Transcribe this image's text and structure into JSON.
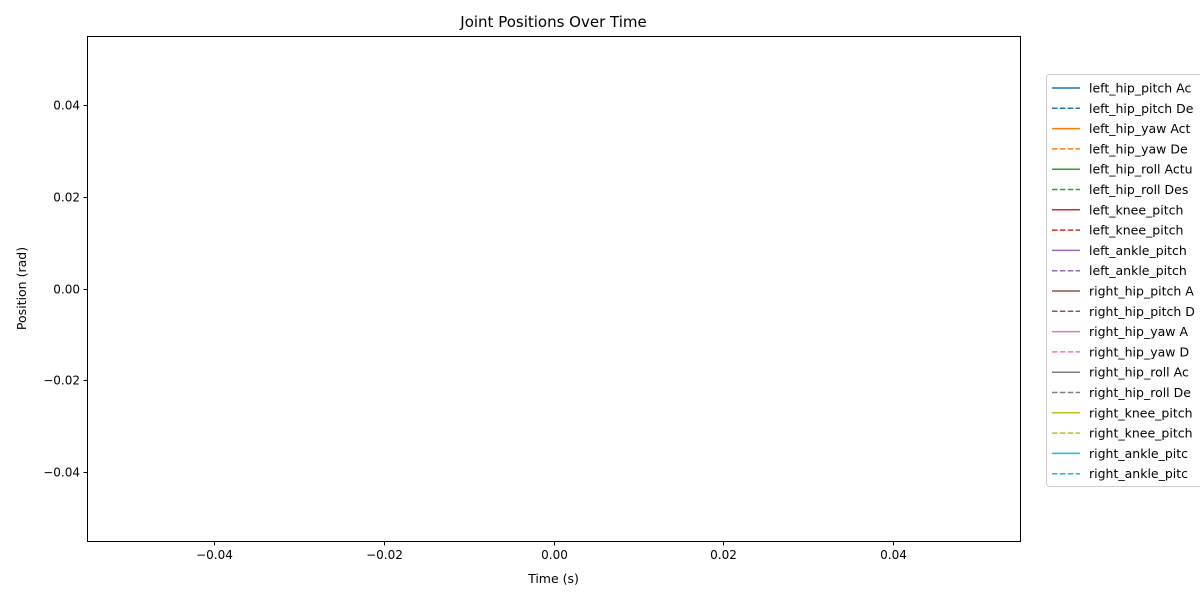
{
  "chart_data": {
    "type": "line",
    "title": "Joint Positions Over Time",
    "xlabel": "Time (s)",
    "ylabel": "Position (rad)",
    "xlim": [
      -0.055,
      0.055
    ],
    "ylim": [
      -0.055,
      0.055
    ],
    "x_ticks": [
      "−0.04",
      "−0.02",
      "0.00",
      "0.02",
      "0.04"
    ],
    "x_tick_values": [
      -0.04,
      -0.02,
      0.0,
      0.02,
      0.04
    ],
    "y_ticks": [
      "0.04",
      "0.02",
      "0.00",
      "−0.02",
      "−0.04"
    ],
    "y_tick_values": [
      0.04,
      0.02,
      0.0,
      -0.02,
      -0.04
    ],
    "grid": false,
    "legend_position": "right, outside plot area, clipped at page edge",
    "series": [
      {
        "name": "left_hip_pitch Ac",
        "color": "#1f77b4",
        "style": "solid",
        "values": []
      },
      {
        "name": "left_hip_pitch De",
        "color": "#1f77b4",
        "style": "dashed",
        "values": []
      },
      {
        "name": "left_hip_yaw Act",
        "color": "#ff7f0e",
        "style": "solid",
        "values": []
      },
      {
        "name": "left_hip_yaw De",
        "color": "#ff7f0e",
        "style": "dashed",
        "values": []
      },
      {
        "name": "left_hip_roll Actu",
        "color": "#2ca02c",
        "style": "solid",
        "values": []
      },
      {
        "name": "left_hip_roll Des",
        "color": "#2ca02c",
        "style": "dashed",
        "values": []
      },
      {
        "name": "left_knee_pitch",
        "color": "#d62728",
        "style": "solid",
        "values": []
      },
      {
        "name": "left_knee_pitch",
        "color": "#d62728",
        "style": "dashed",
        "values": []
      },
      {
        "name": "left_ankle_pitch",
        "color": "#9467bd",
        "style": "solid",
        "values": []
      },
      {
        "name": "left_ankle_pitch",
        "color": "#9467bd",
        "style": "dashed",
        "values": []
      },
      {
        "name": "right_hip_pitch A",
        "color": "#8c564b",
        "style": "solid",
        "values": []
      },
      {
        "name": "right_hip_pitch D",
        "color": "#8c564b",
        "style": "dashed",
        "values": []
      },
      {
        "name": "right_hip_yaw A",
        "color": "#e377c2",
        "style": "solid",
        "values": []
      },
      {
        "name": "right_hip_yaw D",
        "color": "#e377c2",
        "style": "dashed",
        "values": []
      },
      {
        "name": "right_hip_roll Ac",
        "color": "#7f7f7f",
        "style": "solid",
        "values": []
      },
      {
        "name": "right_hip_roll De",
        "color": "#7f7f7f",
        "style": "dashed",
        "values": []
      },
      {
        "name": "right_knee_pitch",
        "color": "#bcbd22",
        "style": "solid",
        "values": []
      },
      {
        "name": "right_knee_pitch",
        "color": "#bcbd22",
        "style": "dashed",
        "values": []
      },
      {
        "name": "right_ankle_pitc",
        "color": "#17becf",
        "style": "solid",
        "values": []
      },
      {
        "name": "right_ankle_pitc",
        "color": "#17becf",
        "style": "dashed",
        "values": []
      }
    ]
  }
}
